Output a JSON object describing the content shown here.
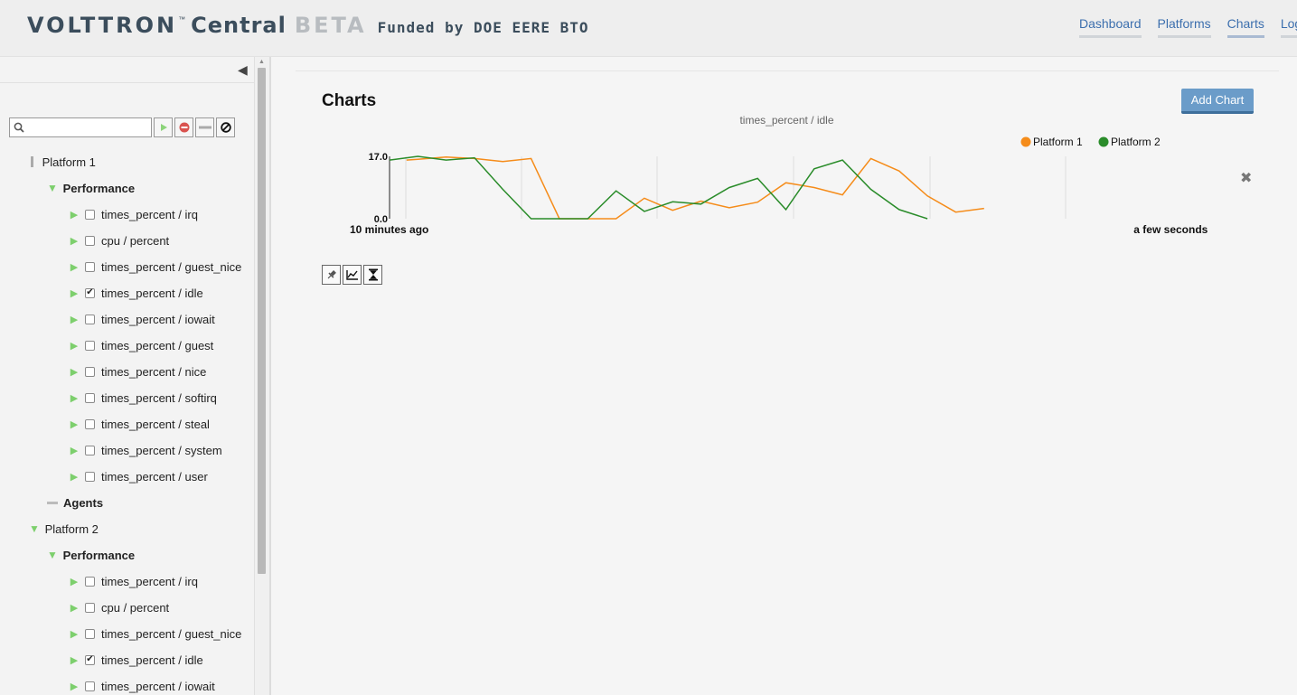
{
  "header": {
    "brand_name": "VOLTTRON",
    "brand_tm": "™",
    "brand_central": "Central",
    "brand_beta": "BETA",
    "funded_text": "Funded by DOE EERE BTO",
    "nav": [
      {
        "label": "Dashboard"
      },
      {
        "label": "Platforms"
      },
      {
        "label": "Charts"
      },
      {
        "label": "Log ou"
      }
    ]
  },
  "sidebar": {
    "toggle_icon": "triangle-left",
    "search": {
      "value": "",
      "placeholder": ""
    },
    "filter_buttons": [
      "play-icon",
      "remove-circle-icon",
      "minus-icon",
      "no-entry-icon"
    ],
    "tree": [
      {
        "type": "platform",
        "label": "Platform 1",
        "expander": "bar"
      },
      {
        "type": "category",
        "label": "Performance",
        "expander": "down"
      },
      {
        "type": "topic",
        "label": "times_percent / irq",
        "checked": false
      },
      {
        "type": "topic",
        "label": "cpu / percent",
        "checked": false
      },
      {
        "type": "topic",
        "label": "times_percent / guest_nice",
        "checked": false
      },
      {
        "type": "topic",
        "label": "times_percent / idle",
        "checked": true
      },
      {
        "type": "topic",
        "label": "times_percent / iowait",
        "checked": false
      },
      {
        "type": "topic",
        "label": "times_percent / guest",
        "checked": false
      },
      {
        "type": "topic",
        "label": "times_percent / nice",
        "checked": false
      },
      {
        "type": "topic",
        "label": "times_percent / softirq",
        "checked": false
      },
      {
        "type": "topic",
        "label": "times_percent / steal",
        "checked": false
      },
      {
        "type": "topic",
        "label": "times_percent / system",
        "checked": false
      },
      {
        "type": "topic",
        "label": "times_percent / user",
        "checked": false
      },
      {
        "type": "category",
        "label": "Agents",
        "expander": "bar"
      },
      {
        "type": "platform",
        "label": "Platform 2",
        "expander": "down"
      },
      {
        "type": "category",
        "label": "Performance",
        "expander": "down"
      },
      {
        "type": "topic",
        "label": "times_percent / irq",
        "checked": false
      },
      {
        "type": "topic",
        "label": "cpu / percent",
        "checked": false
      },
      {
        "type": "topic",
        "label": "times_percent / guest_nice",
        "checked": false
      },
      {
        "type": "topic",
        "label": "times_percent / idle",
        "checked": true
      },
      {
        "type": "topic",
        "label": "times_percent / iowait",
        "checked": false
      }
    ]
  },
  "main": {
    "title": "Charts",
    "add_chart_label": "Add Chart",
    "chart_tools": [
      "pin-icon",
      "line-chart-icon",
      "hourglass-icon"
    ],
    "remove_icon": "✖"
  },
  "colors": {
    "platform1": "#f58c1a",
    "platform2": "#2a8c2a",
    "nav_link": "#3c6fae",
    "add_button": "#6b9cc9"
  },
  "chart_data": {
    "type": "line",
    "title": "times_percent / idle",
    "x_labels": {
      "start": "10 minutes ago",
      "end": "a few seconds ago"
    },
    "x_range": [
      0,
      28
    ],
    "ylim": [
      0.0,
      17.0
    ],
    "y_ticks": [
      "17.0",
      "0.0"
    ],
    "grid": "vertical",
    "legend_position": "top-right",
    "series": [
      {
        "name": "Platform 1",
        "color": "#f58c1a",
        "points": [
          [
            0.6,
            16.0
          ],
          [
            1,
            16.2
          ],
          [
            2,
            16.8
          ],
          [
            3,
            16.4
          ],
          [
            4,
            15.6
          ],
          [
            5,
            16.4
          ],
          [
            6,
            0
          ],
          [
            7,
            0
          ],
          [
            8,
            0
          ],
          [
            9,
            5.6
          ],
          [
            10,
            2.3
          ],
          [
            11,
            4.8
          ],
          [
            12,
            3.0
          ],
          [
            13,
            4.5
          ],
          [
            14,
            9.8
          ],
          [
            15,
            8.5
          ],
          [
            16,
            6.5
          ],
          [
            17,
            16.4
          ],
          [
            18,
            13.0
          ],
          [
            19,
            6.2
          ],
          [
            20,
            1.8
          ],
          [
            21,
            2.8
          ]
        ]
      },
      {
        "name": "Platform 2",
        "color": "#2a8c2a",
        "points": [
          [
            0,
            16.0
          ],
          [
            1,
            17.0
          ],
          [
            2,
            16.0
          ],
          [
            3,
            16.6
          ],
          [
            4,
            8.0
          ],
          [
            5,
            0
          ],
          [
            6,
            0
          ],
          [
            7,
            0
          ],
          [
            8,
            7.6
          ],
          [
            9,
            2.0
          ],
          [
            10,
            4.6
          ],
          [
            11,
            4.0
          ],
          [
            12,
            8.5
          ],
          [
            13,
            11.0
          ],
          [
            14,
            2.5
          ],
          [
            15,
            13.6
          ],
          [
            16,
            16.0
          ],
          [
            17,
            8.0
          ],
          [
            18,
            2.5
          ],
          [
            19,
            0
          ]
        ]
      }
    ]
  }
}
